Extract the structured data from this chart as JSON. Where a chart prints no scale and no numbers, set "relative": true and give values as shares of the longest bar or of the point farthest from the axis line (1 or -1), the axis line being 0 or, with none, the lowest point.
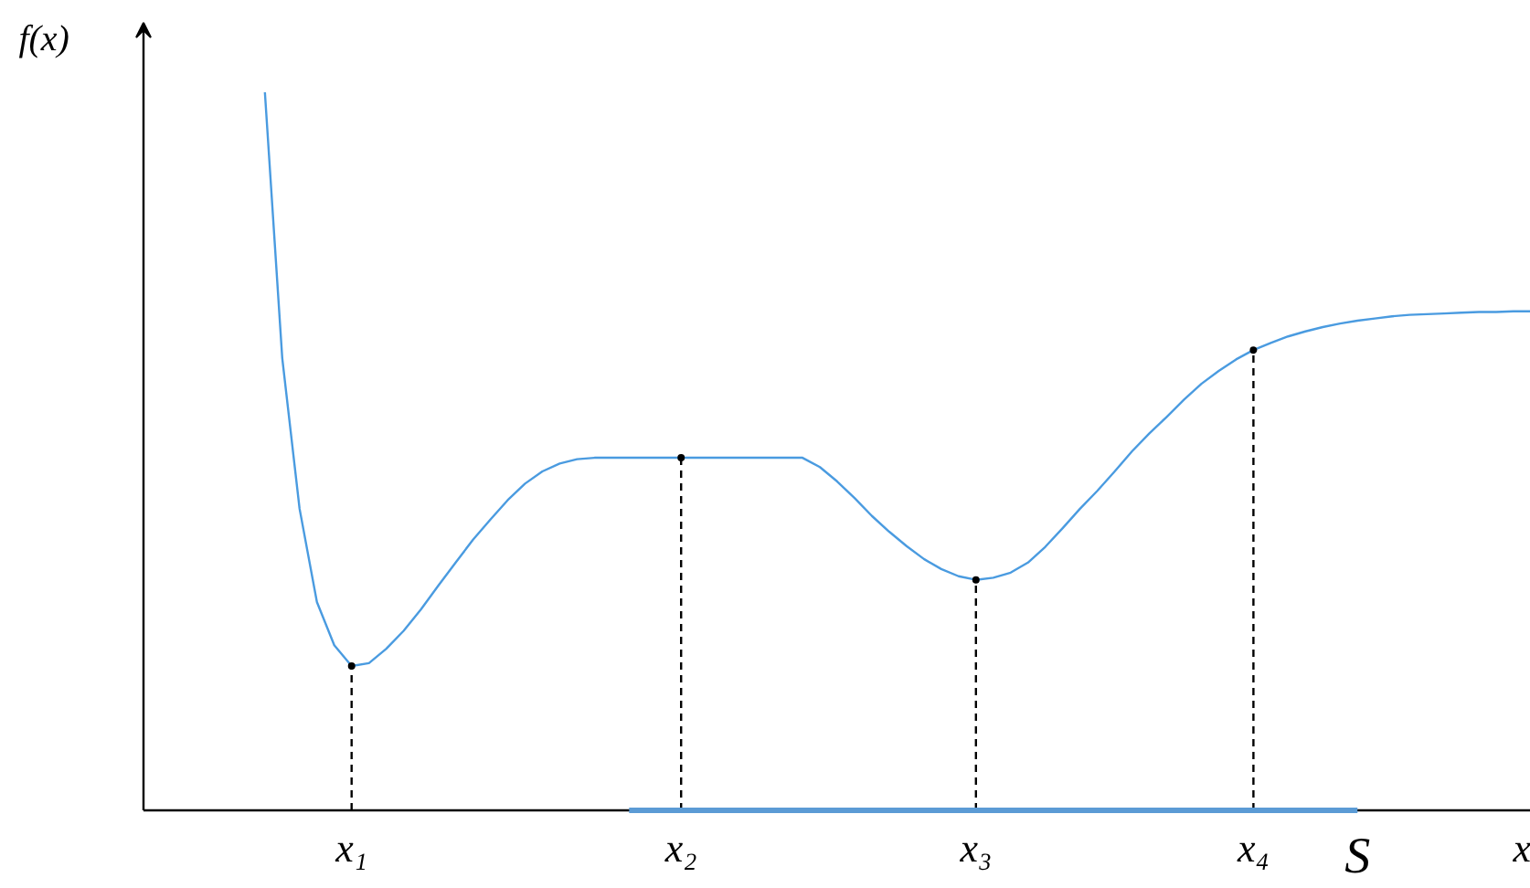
{
  "chart_data": {
    "type": "line",
    "relative": true,
    "xlabel": "x",
    "ylabel": "f(x)",
    "categories": [
      null,
      null,
      null,
      null,
      null,
      null,
      null,
      null,
      null,
      null,
      null,
      null,
      "x₁",
      null,
      null,
      null,
      null,
      null,
      null,
      null,
      null,
      null,
      null,
      null,
      null,
      null,
      null,
      null,
      null,
      null,
      null,
      "x₂",
      null,
      null,
      null,
      null,
      null,
      null,
      null,
      null,
      null,
      null,
      null,
      null,
      null,
      null,
      null,
      null,
      "x₃",
      null,
      null,
      null,
      null,
      null,
      null,
      null,
      null,
      null,
      null,
      null,
      null,
      null,
      null,
      null,
      "x₄",
      null,
      null,
      null,
      null,
      null,
      null,
      null,
      null,
      null,
      null,
      null,
      null,
      null,
      null,
      null,
      null
    ],
    "series": [
      {
        "color": "#4a9be0",
        "values": [
          null,
          null,
          null,
          null,
          null,
          null,
          null,
          1.0,
          0.63,
          0.42,
          0.29,
          0.23,
          0.201,
          0.205,
          0.225,
          0.25,
          0.28,
          0.313,
          0.345,
          0.377,
          0.405,
          0.432,
          0.455,
          0.472,
          0.483,
          0.489,
          0.491,
          0.491,
          0.491,
          0.491,
          0.491,
          0.491,
          0.491,
          0.491,
          0.491,
          0.491,
          0.491,
          0.491,
          0.491,
          0.478,
          0.458,
          0.435,
          0.41,
          0.388,
          0.368,
          0.35,
          0.336,
          0.326,
          0.321,
          0.324,
          0.331,
          0.345,
          0.367,
          0.393,
          0.42,
          0.445,
          0.472,
          0.5,
          0.525,
          0.548,
          0.572,
          0.594,
          0.612,
          0.628,
          0.641,
          0.651,
          0.66,
          0.667,
          0.673,
          0.678,
          0.682,
          0.685,
          0.688,
          0.69,
          0.691,
          0.692,
          0.693,
          0.694,
          0.694,
          0.695,
          0.695
        ]
      },
      {
        "type": "lollipop",
        "color": "#000000",
        "line_style": "dashed",
        "marker": "circle",
        "values": [
          null,
          null,
          null,
          null,
          null,
          null,
          null,
          null,
          null,
          null,
          null,
          null,
          0.201,
          null,
          null,
          null,
          null,
          null,
          null,
          null,
          null,
          null,
          null,
          null,
          null,
          null,
          null,
          null,
          null,
          null,
          null,
          0.491,
          null,
          null,
          null,
          null,
          null,
          null,
          null,
          null,
          null,
          null,
          null,
          null,
          null,
          null,
          null,
          null,
          0.321,
          null,
          null,
          null,
          null,
          null,
          null,
          null,
          null,
          null,
          null,
          null,
          null,
          null,
          null,
          null,
          0.641,
          null,
          null,
          null,
          null,
          null,
          null,
          null,
          null,
          null,
          null,
          null,
          null,
          null,
          null,
          null,
          null
        ]
      },
      {
        "type": "line",
        "color": "#5b9bd5",
        "values": [
          null,
          null,
          null,
          null,
          null,
          null,
          null,
          null,
          null,
          null,
          null,
          null,
          null,
          null,
          null,
          null,
          null,
          null,
          null,
          null,
          null,
          null,
          null,
          null,
          null,
          null,
          null,
          null,
          0,
          0,
          0,
          0,
          0,
          0,
          0,
          0,
          0,
          0,
          0,
          0,
          0,
          0,
          0,
          0,
          0,
          0,
          0,
          0,
          0,
          0,
          0,
          0,
          0,
          0,
          0,
          0,
          0,
          0,
          0,
          0,
          0,
          0,
          0,
          0,
          0,
          0,
          0,
          0,
          0,
          0,
          0,
          null,
          null,
          null,
          null,
          null,
          null,
          null,
          null,
          null,
          null
        ]
      }
    ],
    "annotations": [
      "S"
    ],
    "grid": false
  }
}
